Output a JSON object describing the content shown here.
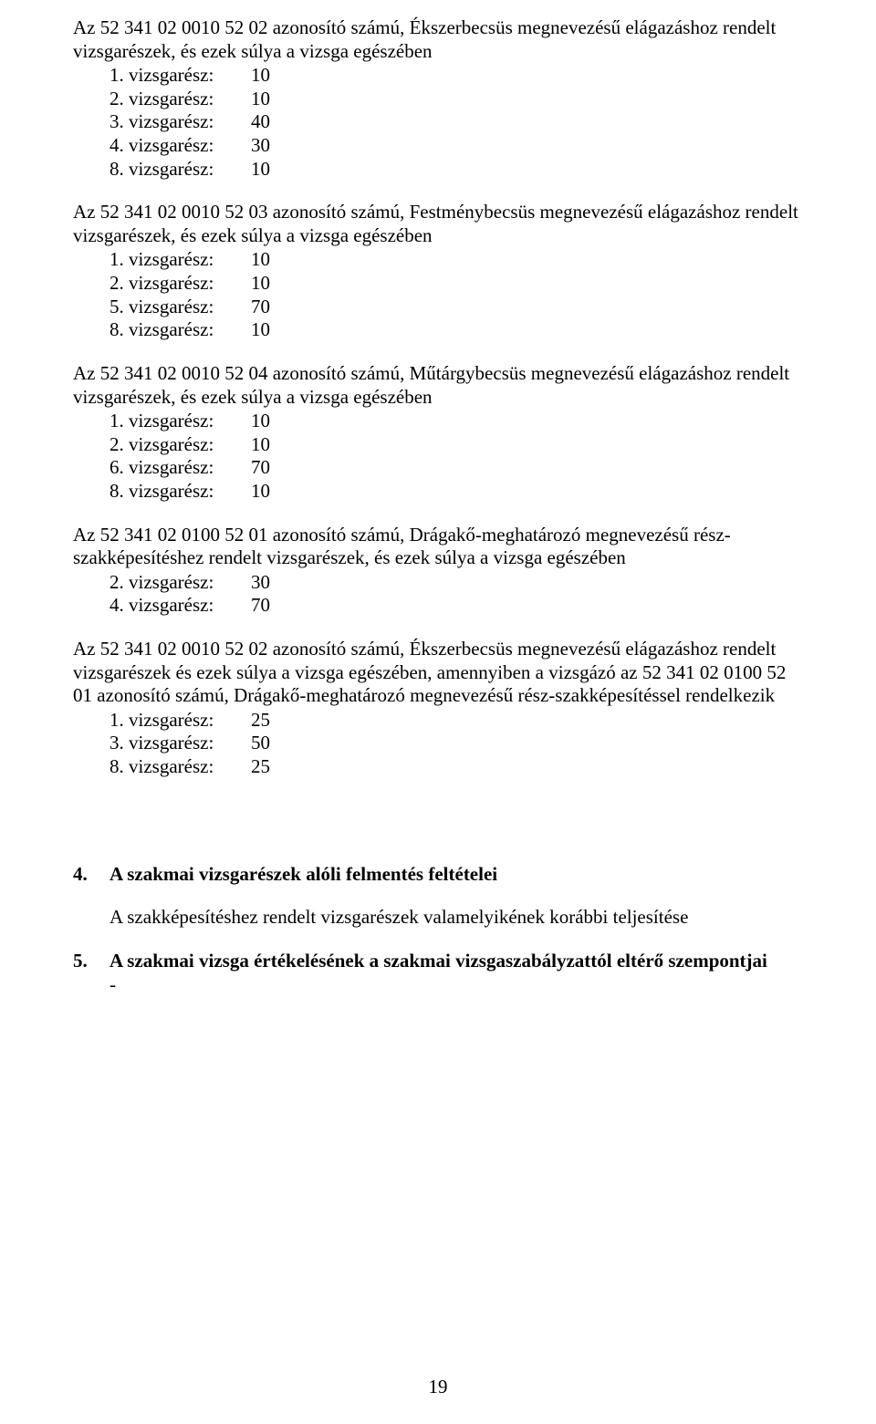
{
  "blocks": [
    {
      "intro": "Az 52 341 02 0010 52 02 azonosító számú, Ékszerbecsüs megnevezésű elágazáshoz rendelt vizsgarészek, és ezek súlya a vizsga egészében",
      "rows": [
        {
          "label": "1. vizsgarész:",
          "value": "10"
        },
        {
          "label": "2. vizsgarész:",
          "value": "10"
        },
        {
          "label": "3. vizsgarész:",
          "value": "40"
        },
        {
          "label": "4. vizsgarész:",
          "value": "30"
        },
        {
          "label": "8. vizsgarész:",
          "value": "10"
        }
      ]
    },
    {
      "intro": "Az 52 341 02 0010 52 03 azonosító számú, Festménybecsüs megnevezésű elágazáshoz rendelt vizsgarészek, és ezek súlya a vizsga egészében",
      "rows": [
        {
          "label": "1. vizsgarész:",
          "value": "10"
        },
        {
          "label": "2. vizsgarész:",
          "value": "10"
        },
        {
          "label": "5. vizsgarész:",
          "value": "70"
        },
        {
          "label": "8. vizsgarész:",
          "value": "10"
        }
      ]
    },
    {
      "intro": "Az 52 341 02 0010 52 04 azonosító számú, Műtárgybecsüs megnevezésű elágazáshoz rendelt vizsgarészek, és ezek súlya a vizsga egészében",
      "rows": [
        {
          "label": "1. vizsgarész:",
          "value": "10"
        },
        {
          "label": "2. vizsgarész:",
          "value": "10"
        },
        {
          "label": "6. vizsgarész:",
          "value": "70"
        },
        {
          "label": "8. vizsgarész:",
          "value": "10"
        }
      ]
    },
    {
      "intro": "Az 52 341 02 0100 52 01 azonosító számú, Drágakő-meghatározó megnevezésű rész-szakképesítéshez rendelt vizsgarészek, és ezek súlya a vizsga egészében",
      "rows": [
        {
          "label": "2. vizsgarész:",
          "value": "30"
        },
        {
          "label": "4. vizsgarész:",
          "value": "70"
        }
      ]
    },
    {
      "intro": "Az 52 341 02 0010 52 02 azonosító számú, Ékszerbecsüs megnevezésű elágazáshoz rendelt vizsgarészek és ezek súlya a vizsga egészében, amennyiben a vizsgázó az 52 341 02 0100 52 01 azonosító számú, Drágakő-meghatározó megnevezésű rész-szakképesítéssel rendelkezik",
      "rows": [
        {
          "label": "1. vizsgarész:",
          "value": "25"
        },
        {
          "label": "3. vizsgarész:",
          "value": "50"
        },
        {
          "label": "8. vizsgarész:",
          "value": "25"
        }
      ]
    }
  ],
  "section4": {
    "num": "4.",
    "title": "A szakmai vizsgarészek alóli felmentés feltételei",
    "body": "A szakképesítéshez rendelt vizsgarészek valamelyikének korábbi teljesítése"
  },
  "section5": {
    "num": "5.",
    "title": "A szakmai vizsga értékelésének a szakmai vizsgaszabályzattól eltérő szempontjai",
    "dash": "-"
  },
  "pageNumber": "19"
}
